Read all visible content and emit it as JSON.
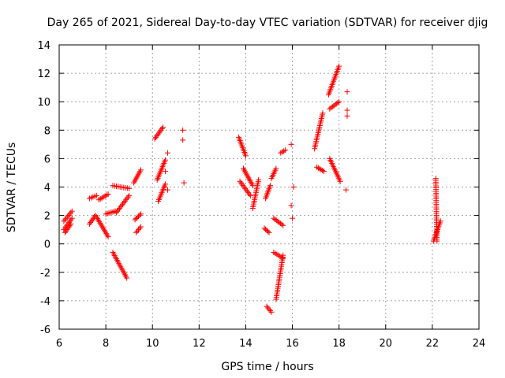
{
  "chart_data": {
    "type": "scatter",
    "title": "Day 265 of 2021, Sidereal Day-to-day VTEC variation (SDTVAR) for receiver djig",
    "xlabel": "GPS time / hours",
    "ylabel": "SDTVAR / TECUs",
    "xlim": [
      6,
      24
    ],
    "ylim": [
      -6,
      14
    ],
    "xticks": [
      6,
      8,
      10,
      12,
      14,
      16,
      18,
      20,
      22,
      24
    ],
    "yticks": [
      -6,
      -4,
      -2,
      0,
      2,
      4,
      6,
      8,
      10,
      12,
      14
    ],
    "grid": true,
    "marker": "+",
    "marker_color": "#ff0000",
    "segments": [
      {
        "x": [
          6.2,
          6.55
        ],
        "y": [
          1.0,
          1.8
        ]
      },
      {
        "x": [
          6.2,
          6.55
        ],
        "y": [
          1.6,
          2.3
        ]
      },
      {
        "x": [
          6.25,
          6.5
        ],
        "y": [
          0.8,
          1.4
        ]
      },
      {
        "x": [
          7.3,
          7.55
        ],
        "y": [
          1.4,
          2.0
        ]
      },
      {
        "x": [
          7.3,
          7.6
        ],
        "y": [
          3.2,
          3.4
        ]
      },
      {
        "x": [
          7.6,
          8.1
        ],
        "y": [
          1.9,
          0.5
        ]
      },
      {
        "x": [
          7.7,
          8.1
        ],
        "y": [
          3.1,
          3.5
        ]
      },
      {
        "x": [
          8.0,
          8.4
        ],
        "y": [
          2.1,
          2.3
        ]
      },
      {
        "x": [
          8.3,
          8.9
        ],
        "y": [
          -0.6,
          -2.4
        ]
      },
      {
        "x": [
          8.3,
          9.0
        ],
        "y": [
          4.1,
          3.9
        ]
      },
      {
        "x": [
          8.45,
          9.0
        ],
        "y": [
          2.2,
          3.4
        ]
      },
      {
        "x": [
          9.2,
          9.5
        ],
        "y": [
          4.3,
          5.2
        ]
      },
      {
        "x": [
          9.25,
          9.5
        ],
        "y": [
          1.7,
          2.1
        ]
      },
      {
        "x": [
          9.3,
          9.5
        ],
        "y": [
          0.8,
          1.2
        ]
      },
      {
        "x": [
          10.1,
          10.45
        ],
        "y": [
          7.4,
          8.2
        ]
      },
      {
        "x": [
          10.2,
          10.55
        ],
        "y": [
          4.5,
          5.9
        ]
      },
      {
        "x": [
          10.25,
          10.55
        ],
        "y": [
          3.0,
          4.2
        ]
      },
      {
        "x": [
          13.7,
          14.0
        ],
        "y": [
          7.5,
          6.2
        ]
      },
      {
        "x": [
          13.75,
          14.2
        ],
        "y": [
          4.4,
          3.4
        ]
      },
      {
        "x": [
          13.9,
          14.3
        ],
        "y": [
          5.3,
          4.1
        ]
      },
      {
        "x": [
          14.3,
          14.55
        ],
        "y": [
          2.5,
          4.5
        ]
      },
      {
        "x": [
          14.8,
          15.0
        ],
        "y": [
          1.1,
          0.8
        ]
      },
      {
        "x": [
          14.85,
          15.05
        ],
        "y": [
          3.2,
          4.1
        ]
      },
      {
        "x": [
          14.9,
          15.1
        ],
        "y": [
          -4.4,
          -4.8
        ]
      },
      {
        "x": [
          15.1,
          15.3
        ],
        "y": [
          4.6,
          5.3
        ]
      },
      {
        "x": [
          15.2,
          15.6
        ],
        "y": [
          -0.6,
          -1.0
        ]
      },
      {
        "x": [
          15.2,
          15.6
        ],
        "y": [
          1.8,
          1.3
        ]
      },
      {
        "x": [
          15.3,
          15.6
        ],
        "y": [
          -3.9,
          -0.8
        ]
      },
      {
        "x": [
          15.5,
          15.7
        ],
        "y": [
          6.4,
          6.6
        ]
      },
      {
        "x": [
          16.95,
          17.3
        ],
        "y": [
          6.7,
          9.2
        ]
      },
      {
        "x": [
          17.05,
          17.35
        ],
        "y": [
          5.4,
          5.1
        ]
      },
      {
        "x": [
          17.55,
          18.0
        ],
        "y": [
          10.5,
          12.5
        ]
      },
      {
        "x": [
          17.6,
          18.0
        ],
        "y": [
          9.5,
          10.0
        ]
      },
      {
        "x": [
          17.6,
          18.05
        ],
        "y": [
          6.0,
          4.4
        ]
      },
      {
        "x": [
          22.05,
          22.35
        ],
        "y": [
          0.2,
          1.6
        ]
      },
      {
        "x": [
          22.15,
          22.2
        ],
        "y": [
          4.6,
          0.2
        ]
      }
    ],
    "isolated_points": [
      {
        "x": 10.65,
        "y": 6.4
      },
      {
        "x": 10.65,
        "y": 3.8
      },
      {
        "x": 10.55,
        "y": 5.1
      },
      {
        "x": 11.3,
        "y": 8.0
      },
      {
        "x": 11.3,
        "y": 7.3
      },
      {
        "x": 11.35,
        "y": 4.3
      },
      {
        "x": 15.95,
        "y": 7.0
      },
      {
        "x": 16.05,
        "y": 4.0
      },
      {
        "x": 15.95,
        "y": 2.7
      },
      {
        "x": 16.0,
        "y": 1.8
      },
      {
        "x": 18.35,
        "y": 10.7
      },
      {
        "x": 18.35,
        "y": 9.4
      },
      {
        "x": 18.35,
        "y": 9.0
      },
      {
        "x": 18.3,
        "y": 3.8
      }
    ]
  }
}
